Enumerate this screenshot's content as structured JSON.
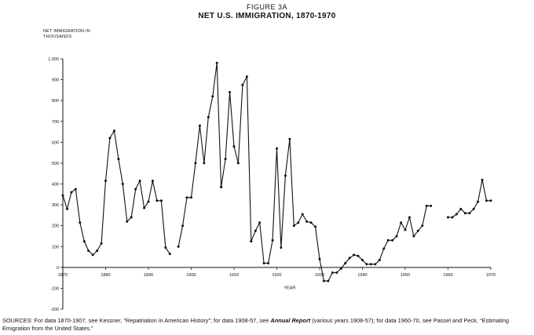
{
  "figure_label": "FIGURE 3A",
  "chart_data": {
    "type": "line",
    "title": "NET U.S. IMMIGRATION, 1870-1970",
    "ylabel": "NET IMMIGRATION IN THOUSANDS",
    "xlabel": "YEAR",
    "xlim": [
      1870,
      1970
    ],
    "ylim": [
      -200,
      1000
    ],
    "x_ticks": [
      "1870",
      "1880",
      "1890",
      "1900",
      "1910",
      "1920",
      "1930",
      "1940",
      "1950",
      "1960",
      "1970"
    ],
    "y_ticks": [
      "1,000",
      "900",
      "800",
      "700",
      "600",
      "500",
      "400",
      "300",
      "200",
      "100",
      "0",
      "-100",
      "-200"
    ],
    "grid": false,
    "series": [
      {
        "segments": [
          [
            [
              1870,
              345
            ],
            [
              1871,
              280
            ],
            [
              1872,
              360
            ],
            [
              1873,
              375
            ],
            [
              1874,
              215
            ],
            [
              1875,
              125
            ],
            [
              1876,
              80
            ],
            [
              1877,
              60
            ],
            [
              1878,
              80
            ],
            [
              1879,
              115
            ],
            [
              1880,
              415
            ],
            [
              1881,
              620
            ],
            [
              1882,
              655
            ],
            [
              1883,
              520
            ],
            [
              1884,
              400
            ],
            [
              1885,
              220
            ],
            [
              1886,
              240
            ],
            [
              1887,
              375
            ],
            [
              1888,
              415
            ],
            [
              1889,
              285
            ],
            [
              1890,
              315
            ],
            [
              1891,
              415
            ],
            [
              1892,
              320
            ],
            [
              1893,
              320
            ],
            [
              1894,
              95
            ],
            [
              1895,
              65
            ]
          ],
          [
            [
              1897,
              100
            ],
            [
              1898,
              200
            ],
            [
              1899,
              335
            ],
            [
              1900,
              335
            ],
            [
              1901,
              500
            ],
            [
              1902,
              680
            ],
            [
              1903,
              500
            ],
            [
              1904,
              720
            ],
            [
              1905,
              820
            ],
            [
              1906,
              980
            ],
            [
              1907,
              385
            ]
          ],
          [
            [
              1907,
              385
            ],
            [
              1908,
              520
            ],
            [
              1909,
              840
            ],
            [
              1910,
              580
            ],
            [
              1911,
              500
            ],
            [
              1912,
              875
            ],
            [
              1913,
              915
            ],
            [
              1914,
              125
            ],
            [
              1915,
              175
            ],
            [
              1916,
              215
            ],
            [
              1917,
              20
            ],
            [
              1918,
              20
            ],
            [
              1919,
              130
            ],
            [
              1920,
              570
            ],
            [
              1921,
              95
            ],
            [
              1922,
              440
            ],
            [
              1923,
              615
            ],
            [
              1924,
              200
            ],
            [
              1925,
              215
            ],
            [
              1926,
              255
            ],
            [
              1927,
              220
            ],
            [
              1928,
              215
            ],
            [
              1929,
              195
            ],
            [
              1930,
              40
            ],
            [
              1931,
              -65
            ],
            [
              1932,
              -65
            ],
            [
              1933,
              -25
            ],
            [
              1934,
              -25
            ],
            [
              1935,
              -5
            ],
            [
              1936,
              20
            ],
            [
              1937,
              45
            ],
            [
              1938,
              60
            ],
            [
              1939,
              55
            ],
            [
              1940,
              35
            ],
            [
              1941,
              15
            ],
            [
              1942,
              15
            ],
            [
              1943,
              15
            ],
            [
              1944,
              35
            ],
            [
              1945,
              90
            ],
            [
              1946,
              130
            ],
            [
              1947,
              130
            ],
            [
              1948,
              150
            ],
            [
              1949,
              215
            ],
            [
              1950,
              180
            ],
            [
              1951,
              240
            ],
            [
              1952,
              150
            ],
            [
              1953,
              175
            ],
            [
              1954,
              200
            ],
            [
              1955,
              295
            ],
            [
              1956,
              295
            ]
          ],
          [
            [
              1960,
              240
            ],
            [
              1961,
              240
            ],
            [
              1962,
              255
            ],
            [
              1963,
              280
            ],
            [
              1964,
              260
            ],
            [
              1965,
              260
            ],
            [
              1966,
              280
            ],
            [
              1967,
              315
            ],
            [
              1968,
              420
            ],
            [
              1969,
              320
            ],
            [
              1970,
              320
            ]
          ]
        ]
      }
    ]
  },
  "sources": {
    "prefix": "SOURCES: For data 1870-1907, see Kessner, “Repatriation in American History”; for data 1908-57, see ",
    "report": "Annual Report",
    "suffix": " (various years 1908-57); for data 1960-70, see Passel and Peck, “Estimating Emigration from the United States.”"
  }
}
